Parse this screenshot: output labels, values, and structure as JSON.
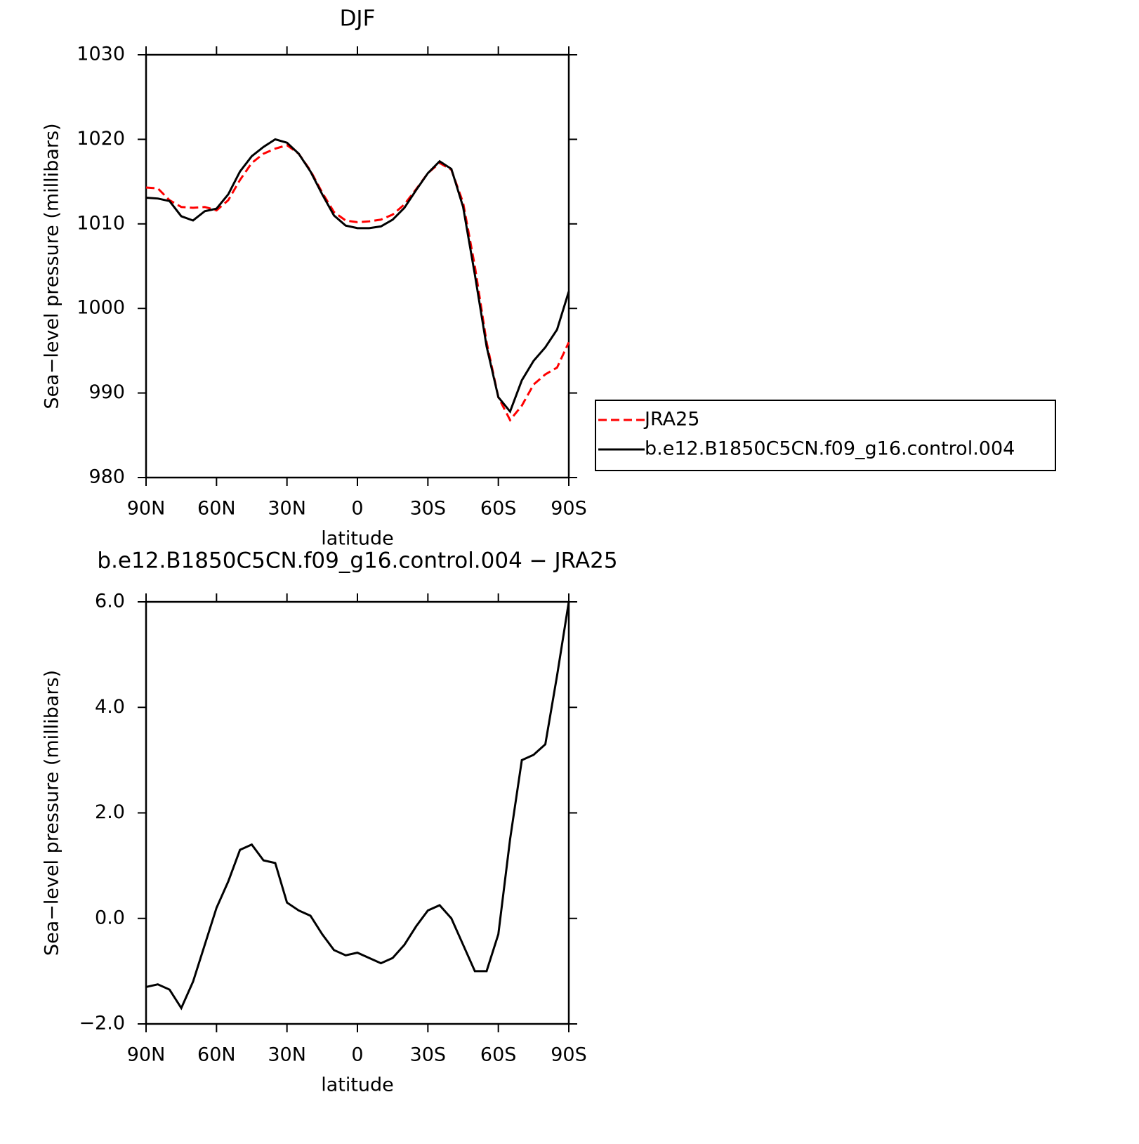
{
  "chart_data": [
    {
      "type": "line",
      "title": "DJF",
      "xlabel": "latitude",
      "ylabel": "Sea−level pressure (millibars)",
      "x": [
        90,
        85,
        80,
        75,
        70,
        65,
        60,
        55,
        50,
        45,
        40,
        35,
        30,
        25,
        20,
        15,
        10,
        5,
        0,
        -5,
        -10,
        -15,
        -20,
        -25,
        -30,
        -35,
        -40,
        -45,
        -50,
        -55,
        -60,
        -65,
        -70,
        -75,
        -80,
        -85,
        -90
      ],
      "xlim": [
        90,
        -90
      ],
      "xticks": [
        {
          "value": 90,
          "label": "90N"
        },
        {
          "value": 60,
          "label": "60N"
        },
        {
          "value": 30,
          "label": "30N"
        },
        0,
        {
          "value": -30,
          "label": "30S"
        },
        {
          "value": -60,
          "label": "60S"
        },
        {
          "value": -90,
          "label": "90S"
        }
      ],
      "ylim": [
        980,
        1030
      ],
      "yticks": [
        980,
        990,
        1000,
        1010,
        1020,
        1030
      ],
      "legend": "right",
      "series": [
        {
          "name": "JRA25",
          "color": "#ff0000",
          "dash": true,
          "values": [
            1014.3,
            1014.2,
            1012.8,
            1012.0,
            1011.9,
            1012.0,
            1011.6,
            1012.8,
            1015.2,
            1017.2,
            1018.3,
            1018.9,
            1019.3,
            1018.3,
            1016.3,
            1013.7,
            1011.4,
            1010.4,
            1010.2,
            1010.3,
            1010.5,
            1011.1,
            1012.3,
            1014.1,
            1016.0,
            1017.2,
            1016.4,
            1012.5,
            1005.0,
            996.0,
            989.5,
            986.8,
            988.5,
            991.0,
            992.2,
            993.0,
            996.0
          ]
        },
        {
          "name": "b.e12.B1850C5CN.f09_g16.control.004",
          "color": "#000000",
          "dash": false,
          "values": [
            1013.1,
            1013.0,
            1012.7,
            1010.9,
            1010.4,
            1011.5,
            1011.8,
            1013.5,
            1016.2,
            1018.0,
            1019.1,
            1020.0,
            1019.6,
            1018.3,
            1016.2,
            1013.5,
            1011.0,
            1009.8,
            1009.5,
            1009.5,
            1009.7,
            1010.5,
            1011.9,
            1014.0,
            1016.0,
            1017.4,
            1016.5,
            1012.0,
            1004.0,
            995.5,
            989.5,
            987.8,
            991.5,
            993.8,
            995.4,
            997.5,
            1002.0
          ]
        }
      ]
    },
    {
      "type": "line",
      "title": "b.e12.B1850C5CN.f09_g16.control.004 − JRA25",
      "xlabel": "latitude",
      "ylabel": "Sea−level pressure (millibars)",
      "x": [
        90,
        85,
        80,
        75,
        70,
        65,
        60,
        55,
        50,
        45,
        40,
        35,
        30,
        25,
        20,
        15,
        10,
        5,
        0,
        -5,
        -10,
        -15,
        -20,
        -25,
        -30,
        -35,
        -40,
        -45,
        -50,
        -55,
        -60,
        -65,
        -70,
        -75,
        -80,
        -85,
        -90
      ],
      "xlim": [
        90,
        -90
      ],
      "xticks": [
        {
          "value": 90,
          "label": "90N"
        },
        {
          "value": 60,
          "label": "60N"
        },
        {
          "value": 30,
          "label": "30N"
        },
        0,
        {
          "value": -30,
          "label": "30S"
        },
        {
          "value": -60,
          "label": "60S"
        },
        {
          "value": -90,
          "label": "90S"
        }
      ],
      "ylim": [
        -2,
        6
      ],
      "yticks": [
        {
          "value": -2,
          "label": "−2.0"
        },
        {
          "value": 0,
          "label": "0.0"
        },
        {
          "value": 2,
          "label": "2.0"
        },
        {
          "value": 4,
          "label": "4.0"
        },
        {
          "value": 6,
          "label": "6.0"
        }
      ],
      "color": "#000000",
      "values": [
        -1.3,
        -1.25,
        -1.35,
        -1.7,
        -1.2,
        -0.5,
        0.2,
        0.7,
        1.3,
        1.4,
        1.1,
        1.05,
        0.3,
        0.15,
        0.05,
        -0.3,
        -0.6,
        -0.7,
        -0.65,
        -0.75,
        -0.85,
        -0.75,
        -0.5,
        -0.15,
        0.15,
        0.25,
        0.0,
        -0.5,
        -1.0,
        -1.0,
        -0.3,
        1.5,
        3.0,
        3.1,
        3.3,
        4.6,
        6.0
      ]
    }
  ]
}
